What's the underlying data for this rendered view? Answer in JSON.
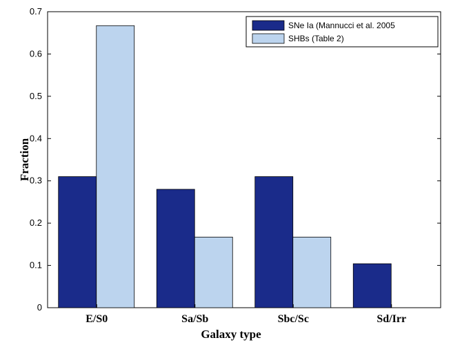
{
  "chart_data": {
    "type": "bar",
    "categories": [
      "E/S0",
      "Sa/Sb",
      "Sbc/Sc",
      "Sd/Irr"
    ],
    "series": [
      {
        "name": "SNe Ia (Mannucci et al. 2005",
        "values": [
          0.31,
          0.28,
          0.31,
          0.104
        ],
        "color": "#1a2b8a"
      },
      {
        "name": "SHBs (Table 2)",
        "values": [
          0.667,
          0.167,
          0.167,
          0
        ],
        "color": "#bcd4ee"
      }
    ],
    "title": "",
    "xlabel": "Galaxy type",
    "ylabel": "Fraction",
    "ylim": [
      0,
      0.7
    ],
    "yticks": [
      0,
      0.1,
      0.2,
      0.3,
      0.4,
      0.5,
      0.6,
      0.7
    ],
    "ytick_labels": [
      "0",
      "0.1",
      "0.2",
      "0.3",
      "0.4",
      "0.5",
      "0.6",
      "0.7"
    ],
    "legend_position": "top-right",
    "grid": false
  }
}
